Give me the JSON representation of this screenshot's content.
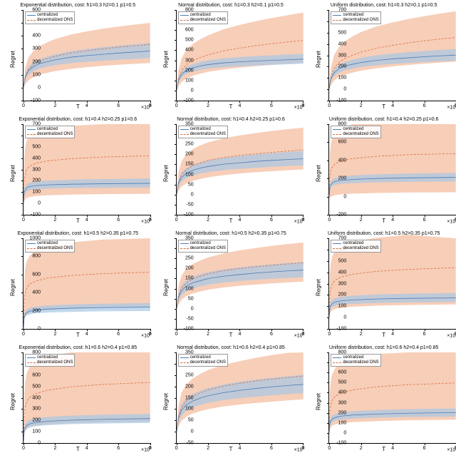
{
  "global": {
    "xlabel": "T",
    "ylabel": "Regret",
    "xmul": "×10^5",
    "xlim": [
      0,
      8
    ],
    "xtick_step": 2,
    "colors": {
      "band_blue": "#a6c8e6",
      "band_orange": "#f4b99a",
      "line_blue": "#4a7db5",
      "line_orange": "#d86f3f",
      "axis": "#000000",
      "bg": "#ffffff"
    },
    "band_opacity": 0.7,
    "line_width": 0.8,
    "orange_dash": "3,2",
    "legend": {
      "centralized": "centralized",
      "decentralized": "decentralized ONS"
    }
  },
  "panels": [
    {
      "title": "Exponential distribution, cost: h1=0.3 h2=0.1 p1=0.5",
      "ylim": [
        -100,
        600
      ],
      "ytick_step": 100,
      "x": [
        0,
        0.1,
        0.3,
        0.6,
        1,
        1.5,
        2,
        3,
        4,
        5,
        6,
        7,
        8
      ],
      "blue_mid": [
        0,
        80,
        130,
        160,
        185,
        200,
        215,
        235,
        248,
        258,
        267,
        275,
        282
      ],
      "blue_lo": [
        0,
        60,
        100,
        125,
        148,
        162,
        174,
        190,
        200,
        208,
        216,
        222,
        228
      ],
      "blue_hi": [
        0,
        100,
        160,
        195,
        222,
        240,
        258,
        282,
        298,
        312,
        325,
        335,
        345
      ],
      "orange_mid": [
        0,
        85,
        140,
        175,
        205,
        225,
        242,
        268,
        285,
        300,
        313,
        324,
        334
      ],
      "orange_lo": [
        0,
        25,
        55,
        80,
        100,
        115,
        128,
        145,
        158,
        168,
        177,
        184,
        190
      ],
      "orange_hi": [
        0,
        150,
        230,
        280,
        320,
        350,
        375,
        410,
        435,
        455,
        472,
        487,
        500
      ]
    },
    {
      "title": "Normal distribution, cost: h1=0.3 h2=0.1 p1=0.5",
      "ylim": [
        -100,
        800
      ],
      "ytick_step": 100,
      "x": [
        0,
        0.1,
        0.3,
        0.6,
        1,
        1.5,
        2,
        3,
        4,
        5,
        6,
        7,
        8
      ],
      "blue_mid": [
        0,
        100,
        160,
        200,
        225,
        245,
        258,
        275,
        285,
        293,
        300,
        306,
        312
      ],
      "blue_lo": [
        0,
        80,
        130,
        165,
        188,
        205,
        218,
        232,
        241,
        248,
        255,
        261,
        266
      ],
      "blue_hi": [
        0,
        120,
        190,
        235,
        262,
        285,
        300,
        320,
        332,
        342,
        350,
        357,
        364
      ],
      "orange_mid": [
        0,
        120,
        200,
        255,
        295,
        328,
        355,
        395,
        422,
        445,
        465,
        482,
        498
      ],
      "orange_lo": [
        0,
        40,
        85,
        118,
        145,
        168,
        186,
        210,
        228,
        242,
        255,
        266,
        276
      ],
      "orange_hi": [
        0,
        200,
        320,
        400,
        460,
        510,
        550,
        610,
        652,
        688,
        720,
        748,
        775
      ]
    },
    {
      "title": "Uniform distribution, cost: h1=0.3 h2=0.1 p1=0.5",
      "ylim": [
        -100,
        700
      ],
      "ytick_step": 100,
      "x": [
        0,
        0.1,
        0.3,
        0.6,
        1,
        1.5,
        2,
        3,
        4,
        5,
        6,
        7,
        8
      ],
      "blue_mid": [
        0,
        90,
        145,
        180,
        205,
        222,
        236,
        255,
        268,
        278,
        287,
        295,
        302
      ],
      "blue_lo": [
        0,
        70,
        115,
        145,
        168,
        184,
        197,
        213,
        224,
        232,
        240,
        247,
        253
      ],
      "blue_hi": [
        0,
        110,
        175,
        215,
        242,
        262,
        278,
        300,
        315,
        328,
        338,
        347,
        355
      ],
      "orange_mid": [
        0,
        110,
        185,
        235,
        272,
        302,
        327,
        363,
        388,
        410,
        428,
        444,
        458
      ],
      "orange_lo": [
        0,
        35,
        75,
        105,
        128,
        148,
        164,
        186,
        202,
        215,
        226,
        235,
        244
      ],
      "orange_hi": [
        0,
        185,
        300,
        370,
        425,
        470,
        505,
        555,
        590,
        620,
        645,
        668,
        688
      ]
    },
    {
      "title": "Exponential distribution, cost: h1=0.4 h2=0.25 p1=0.6",
      "ylim": [
        -100,
        700
      ],
      "ytick_step": 100,
      "x": [
        0,
        0.05,
        0.1,
        0.2,
        0.4,
        0.8,
        1.5,
        3,
        5,
        8
      ],
      "blue_mid": [
        0,
        95,
        120,
        138,
        150,
        158,
        164,
        170,
        174,
        178
      ],
      "blue_lo": [
        0,
        70,
        92,
        108,
        118,
        125,
        130,
        135,
        138,
        141
      ],
      "blue_hi": [
        0,
        120,
        150,
        170,
        184,
        194,
        202,
        210,
        215,
        220
      ],
      "orange_mid": [
        0,
        210,
        260,
        300,
        330,
        355,
        375,
        395,
        410,
        420
      ],
      "orange_lo": [
        0,
        20,
        35,
        48,
        58,
        66,
        72,
        78,
        82,
        85
      ],
      "orange_hi": [
        0,
        400,
        490,
        555,
        600,
        635,
        660,
        685,
        700,
        700
      ]
    },
    {
      "title": "Normal distribution, cost: h1=0.4 h2=0.25 p1=0.6",
      "ylim": [
        -100,
        350
      ],
      "ytick_step": 50,
      "x": [
        0,
        0.1,
        0.3,
        0.6,
        1,
        1.5,
        2,
        3,
        4,
        5,
        6,
        7,
        8
      ],
      "blue_mid": [
        0,
        55,
        85,
        105,
        120,
        132,
        140,
        151,
        158,
        165,
        170,
        174,
        178
      ],
      "blue_lo": [
        0,
        40,
        65,
        82,
        95,
        105,
        112,
        122,
        128,
        133,
        138,
        142,
        145
      ],
      "blue_hi": [
        0,
        70,
        108,
        130,
        147,
        160,
        170,
        183,
        192,
        200,
        206,
        212,
        217
      ],
      "orange_mid": [
        0,
        60,
        100,
        125,
        144,
        158,
        170,
        185,
        195,
        203,
        210,
        216,
        222
      ],
      "orange_lo": [
        0,
        18,
        40,
        55,
        68,
        78,
        86,
        97,
        105,
        111,
        116,
        121,
        125
      ],
      "orange_hi": [
        0,
        105,
        165,
        200,
        225,
        245,
        260,
        280,
        294,
        306,
        316,
        325,
        333
      ]
    },
    {
      "title": "Uniform distribution, cost: h1=0.4 h2=0.25 p1=0.6",
      "ylim": [
        -200,
        800
      ],
      "ytick_step": 200,
      "x": [
        0,
        0.05,
        0.1,
        0.2,
        0.4,
        0.8,
        1.5,
        3,
        5,
        8
      ],
      "blue_mid": [
        0,
        100,
        130,
        152,
        168,
        180,
        190,
        200,
        207,
        212
      ],
      "blue_lo": [
        0,
        75,
        100,
        118,
        131,
        141,
        149,
        157,
        163,
        167
      ],
      "blue_hi": [
        0,
        125,
        162,
        188,
        207,
        222,
        234,
        246,
        255,
        262
      ],
      "orange_mid": [
        0,
        230,
        285,
        330,
        365,
        395,
        420,
        445,
        463,
        475
      ],
      "orange_lo": [
        0,
        -20,
        -5,
        8,
        18,
        26,
        33,
        40,
        45,
        48
      ],
      "orange_hi": [
        0,
        480,
        575,
        650,
        710,
        760,
        800,
        800,
        800,
        800
      ]
    },
    {
      "title": "Exponential distribution, cost: h1=0.5 h2=0.35 p1=0.75",
      "ylim": [
        0,
        1000
      ],
      "ytick_step": 200,
      "x": [
        0,
        0.05,
        0.1,
        0.2,
        0.4,
        0.8,
        1.5,
        3,
        5,
        8
      ],
      "blue_mid": [
        0,
        130,
        160,
        180,
        195,
        208,
        218,
        228,
        235,
        240
      ],
      "blue_lo": [
        0,
        105,
        130,
        148,
        161,
        172,
        180,
        188,
        194,
        198
      ],
      "blue_hi": [
        0,
        155,
        190,
        215,
        232,
        246,
        258,
        270,
        278,
        285
      ],
      "orange_mid": [
        0,
        320,
        395,
        450,
        495,
        530,
        560,
        590,
        610,
        625
      ],
      "orange_lo": [
        0,
        100,
        135,
        160,
        180,
        196,
        210,
        224,
        234,
        242
      ],
      "orange_hi": [
        0,
        540,
        660,
        745,
        810,
        865,
        910,
        955,
        985,
        1000
      ]
    },
    {
      "title": "Normal distribution, cost: h1=0.5 h2=0.35 p1=0.75",
      "ylim": [
        -100,
        350
      ],
      "ytick_step": 50,
      "x": [
        0,
        0.1,
        0.3,
        0.6,
        1,
        1.5,
        2,
        3,
        4,
        5,
        6,
        7,
        8
      ],
      "blue_mid": [
        0,
        55,
        90,
        112,
        128,
        140,
        150,
        162,
        170,
        177,
        183,
        188,
        192
      ],
      "blue_lo": [
        0,
        40,
        68,
        87,
        101,
        112,
        120,
        131,
        138,
        144,
        149,
        153,
        157
      ],
      "blue_hi": [
        0,
        72,
        115,
        140,
        158,
        172,
        182,
        196,
        206,
        214,
        221,
        227,
        232
      ],
      "orange_mid": [
        0,
        62,
        102,
        128,
        148,
        162,
        174,
        190,
        200,
        209,
        216,
        222,
        228
      ],
      "orange_lo": [
        0,
        20,
        45,
        62,
        76,
        86,
        95,
        106,
        114,
        120,
        126,
        131,
        135
      ],
      "orange_hi": [
        0,
        108,
        165,
        198,
        222,
        240,
        255,
        276,
        290,
        302,
        312,
        321,
        329
      ]
    },
    {
      "title": "Uniform distribution, cost: h1=0.5 h2=0.35 p1=0.75",
      "ylim": [
        -100,
        700
      ],
      "ytick_step": 100,
      "x": [
        0,
        0.05,
        0.1,
        0.2,
        0.4,
        0.8,
        1.5,
        3,
        5,
        8
      ],
      "blue_mid": [
        0,
        85,
        108,
        125,
        138,
        148,
        156,
        164,
        170,
        174
      ],
      "blue_lo": [
        0,
        60,
        80,
        95,
        106,
        115,
        122,
        129,
        134,
        138
      ],
      "blue_hi": [
        0,
        110,
        138,
        158,
        172,
        184,
        194,
        204,
        211,
        217
      ],
      "orange_mid": [
        0,
        210,
        260,
        300,
        332,
        360,
        383,
        408,
        426,
        440
      ],
      "orange_lo": [
        0,
        30,
        50,
        65,
        78,
        88,
        96,
        105,
        111,
        116
      ],
      "orange_hi": [
        0,
        390,
        480,
        545,
        595,
        636,
        670,
        705,
        730,
        700
      ]
    },
    {
      "title": "Exponential distribution, cost: h1=0.6 h2=0.4 p1=0.85",
      "ylim": [
        0,
        800
      ],
      "ytick_step": 100,
      "x": [
        0,
        0.05,
        0.1,
        0.2,
        0.4,
        0.8,
        1.5,
        3,
        5,
        8
      ],
      "blue_mid": [
        0,
        110,
        135,
        155,
        170,
        182,
        192,
        202,
        210,
        216
      ],
      "blue_lo": [
        0,
        85,
        108,
        126,
        139,
        150,
        158,
        167,
        173,
        178
      ],
      "blue_hi": [
        0,
        135,
        165,
        188,
        205,
        219,
        230,
        242,
        250,
        257
      ],
      "orange_mid": [
        0,
        260,
        320,
        368,
        405,
        438,
        466,
        496,
        518,
        535
      ],
      "orange_lo": [
        0,
        80,
        105,
        125,
        140,
        153,
        164,
        175,
        183,
        190
      ],
      "orange_hi": [
        0,
        440,
        540,
        615,
        675,
        725,
        768,
        800,
        800,
        800
      ]
    },
    {
      "title": "Normal distribution, cost: h1=0.6 h2=0.4 p1=0.85",
      "ylim": [
        -50,
        350
      ],
      "ytick_step": 50,
      "x": [
        0,
        0.1,
        0.3,
        0.6,
        1,
        1.5,
        2,
        3,
        4,
        5,
        6,
        7,
        8
      ],
      "blue_mid": [
        0,
        58,
        95,
        118,
        135,
        149,
        159,
        173,
        183,
        191,
        198,
        204,
        209
      ],
      "blue_lo": [
        0,
        42,
        72,
        92,
        107,
        119,
        128,
        140,
        148,
        155,
        161,
        166,
        170
      ],
      "blue_hi": [
        0,
        76,
        120,
        146,
        166,
        181,
        193,
        209,
        221,
        230,
        238,
        245,
        251
      ],
      "orange_mid": [
        0,
        65,
        108,
        135,
        156,
        172,
        185,
        202,
        214,
        224,
        232,
        239,
        246
      ],
      "orange_lo": [
        0,
        22,
        48,
        66,
        80,
        91,
        100,
        112,
        120,
        127,
        133,
        138,
        143
      ],
      "orange_hi": [
        0,
        112,
        172,
        208,
        235,
        256,
        273,
        296,
        312,
        326,
        338,
        348,
        350
      ]
    },
    {
      "title": "Uniform distribution, cost: h1=0.6 h2=0.4 p1=0.85",
      "ylim": [
        -100,
        800
      ],
      "ytick_step": 100,
      "x": [
        0,
        0.05,
        0.1,
        0.2,
        0.4,
        0.8,
        1.5,
        3,
        5,
        8
      ],
      "blue_mid": [
        0,
        95,
        120,
        140,
        155,
        168,
        178,
        188,
        196,
        202
      ],
      "blue_lo": [
        0,
        70,
        92,
        110,
        123,
        134,
        143,
        152,
        158,
        164
      ],
      "blue_hi": [
        0,
        120,
        150,
        172,
        190,
        204,
        216,
        228,
        237,
        244
      ],
      "orange_mid": [
        0,
        230,
        285,
        330,
        368,
        400,
        428,
        458,
        480,
        497
      ],
      "orange_lo": [
        0,
        35,
        55,
        72,
        86,
        98,
        108,
        118,
        126,
        132
      ],
      "orange_hi": [
        0,
        425,
        520,
        590,
        648,
        698,
        740,
        785,
        800,
        800
      ]
    }
  ]
}
